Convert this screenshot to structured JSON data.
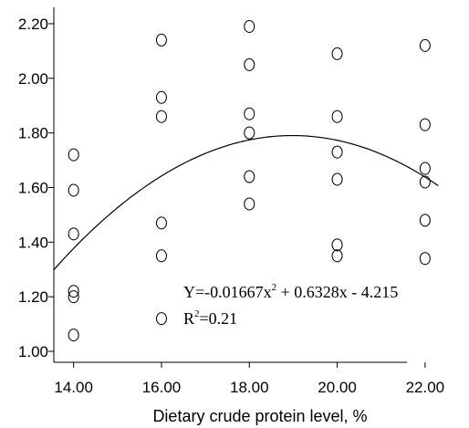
{
  "chart_data": {
    "type": "scatter",
    "xlabel": "Dietary crude protein level, %",
    "ylabel": "",
    "xlim": [
      13.55,
      23.0
    ],
    "ylim": [
      0.96,
      2.26
    ],
    "x_ticks": [
      14,
      16,
      18,
      20,
      22
    ],
    "x_tick_labels": [
      "14.00",
      "16.00",
      "18.00",
      "20.00",
      "22.00"
    ],
    "y_ticks": [
      1.0,
      1.2,
      1.4,
      1.6,
      1.8,
      2.0,
      2.2
    ],
    "y_tick_labels": [
      "1.00",
      "1.20",
      "1.40",
      "1.60",
      "1.80",
      "2.00",
      "2.20"
    ],
    "grid": false,
    "points": [
      {
        "x": 14,
        "y": 1.72
      },
      {
        "x": 14,
        "y": 1.59
      },
      {
        "x": 14,
        "y": 1.43
      },
      {
        "x": 14,
        "y": 1.22
      },
      {
        "x": 14,
        "y": 1.2
      },
      {
        "x": 14,
        "y": 1.06
      },
      {
        "x": 16,
        "y": 2.14
      },
      {
        "x": 16,
        "y": 1.93
      },
      {
        "x": 16,
        "y": 1.86
      },
      {
        "x": 16,
        "y": 1.47
      },
      {
        "x": 16,
        "y": 1.35
      },
      {
        "x": 16,
        "y": 1.12
      },
      {
        "x": 18,
        "y": 2.19
      },
      {
        "x": 18,
        "y": 2.05
      },
      {
        "x": 18,
        "y": 1.87
      },
      {
        "x": 18,
        "y": 1.8
      },
      {
        "x": 18,
        "y": 1.64
      },
      {
        "x": 18,
        "y": 1.54
      },
      {
        "x": 20,
        "y": 2.09
      },
      {
        "x": 20,
        "y": 1.86
      },
      {
        "x": 20,
        "y": 1.73
      },
      {
        "x": 20,
        "y": 1.63
      },
      {
        "x": 20,
        "y": 1.39
      },
      {
        "x": 20,
        "y": 1.35
      },
      {
        "x": 22,
        "y": 2.12
      },
      {
        "x": 22,
        "y": 1.83
      },
      {
        "x": 22,
        "y": 1.67
      },
      {
        "x": 22,
        "y": 1.62
      },
      {
        "x": 22,
        "y": 1.48
      },
      {
        "x": 22,
        "y": 1.34
      }
    ],
    "fit": {
      "a": -0.01667,
      "b": 0.6328,
      "c": -4.215,
      "x_range": [
        13.55,
        22.3
      ]
    },
    "annotation": {
      "equation_parts": [
        "Y=-0.01667x",
        "2",
        " + 0.6328x - 4.215"
      ],
      "r2_parts": [
        "R",
        "2",
        "=0.21"
      ]
    }
  }
}
